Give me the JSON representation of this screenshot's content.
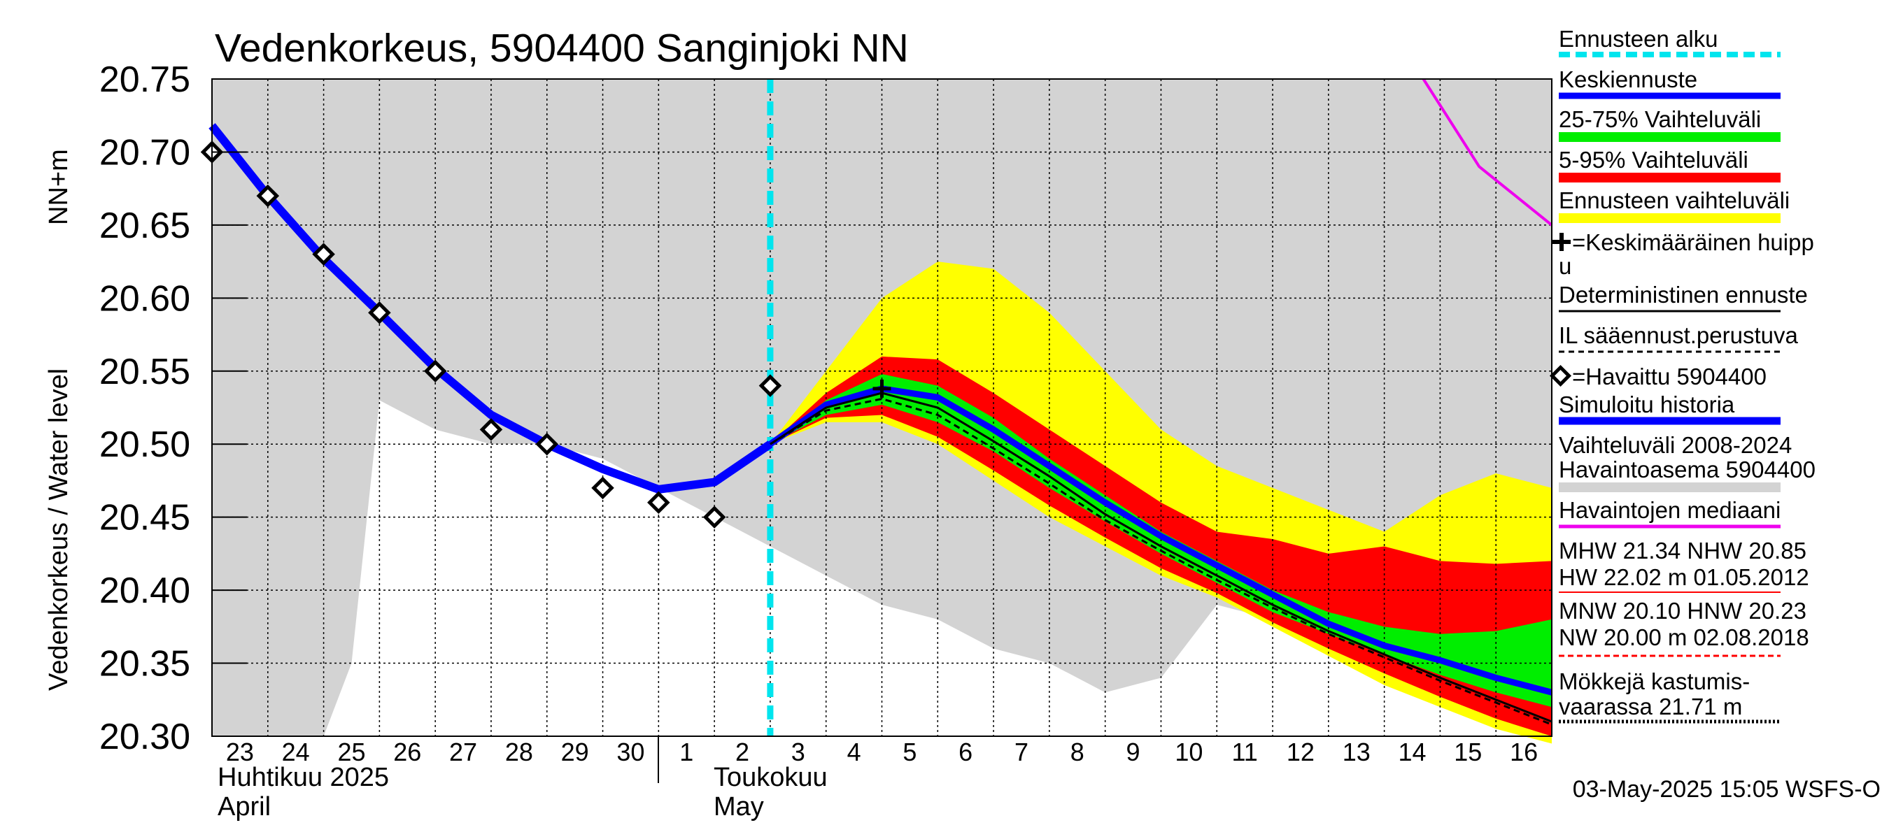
{
  "chart_data": {
    "type": "line",
    "title": "Vedenkorkeus, 5904400 Sanginjoki NN",
    "ylabel": "Vedenkorkeus / Water level",
    "ylabel_unit": "NN+m",
    "ylim": [
      20.3,
      20.75
    ],
    "y_ticks": [
      "20.30",
      "20.35",
      "20.40",
      "20.45",
      "20.50",
      "20.55",
      "20.60",
      "20.65",
      "20.70",
      "20.75"
    ],
    "x_range": [
      0,
      24
    ],
    "x_tick_labels": [
      "23",
      "24",
      "25",
      "26",
      "27",
      "28",
      "29",
      "30",
      "1",
      "2",
      "3",
      "4",
      "5",
      "6",
      "7",
      "8",
      "9",
      "10",
      "11",
      "12",
      "13",
      "14",
      "15",
      "16"
    ],
    "month_labels": {
      "april_fi": "Huhtikuu  2025",
      "april_en": "April",
      "may_fi": "Toukokuu",
      "may_en": "May"
    },
    "forecast_start_x": 10,
    "history_band": {
      "x": [
        0,
        1.5,
        2,
        2.5,
        3,
        4,
        5,
        6,
        7,
        8,
        9,
        10,
        11,
        12,
        13,
        14,
        15,
        16,
        17,
        18,
        19,
        20,
        21,
        22,
        23,
        24
      ],
      "lower": [
        20.3,
        20.3,
        20.3,
        20.35,
        20.53,
        20.51,
        20.5,
        20.5,
        20.49,
        20.47,
        20.45,
        20.43,
        20.41,
        20.39,
        20.38,
        20.36,
        20.35,
        20.33,
        20.34,
        20.39,
        20.38,
        20.36,
        20.35,
        20.33,
        20.33,
        20.38
      ],
      "upper": [
        20.75,
        20.75,
        20.75,
        20.75,
        20.75,
        20.75,
        20.75,
        20.75,
        20.75,
        20.75,
        20.75,
        20.75,
        20.75,
        20.75,
        20.75,
        20.75,
        20.75,
        20.75,
        20.75,
        20.75,
        20.75,
        20.75,
        20.75,
        20.75,
        20.75,
        20.75
      ]
    },
    "forecast_x": [
      10,
      11,
      12,
      13,
      14,
      15,
      16,
      17,
      18,
      19,
      20,
      21,
      22,
      23,
      24
    ],
    "forecast_range": {
      "upper": [
        20.5,
        20.55,
        20.6,
        20.625,
        20.62,
        20.59,
        20.55,
        20.51,
        20.485,
        20.47,
        20.455,
        20.44,
        20.465,
        20.48,
        20.47
      ],
      "lower": [
        20.5,
        20.515,
        20.515,
        20.5,
        20.475,
        20.45,
        20.43,
        20.41,
        20.395,
        20.375,
        20.355,
        20.335,
        20.32,
        20.305,
        20.295
      ]
    },
    "band_5_95": {
      "upper": [
        20.5,
        20.535,
        20.56,
        20.558,
        20.535,
        20.51,
        20.485,
        20.46,
        20.44,
        20.435,
        20.425,
        20.43,
        20.42,
        20.418,
        20.42
      ],
      "lower": [
        20.5,
        20.518,
        20.52,
        20.505,
        20.482,
        20.458,
        20.436,
        20.415,
        20.398,
        20.378,
        20.36,
        20.343,
        20.327,
        20.312,
        20.3
      ]
    },
    "band_25_75": {
      "upper": [
        20.5,
        20.53,
        20.548,
        20.54,
        20.518,
        20.49,
        20.465,
        20.44,
        20.42,
        20.4,
        20.385,
        20.375,
        20.37,
        20.372,
        20.38
      ],
      "lower": [
        20.5,
        20.52,
        20.527,
        20.515,
        20.495,
        20.47,
        20.447,
        20.425,
        20.405,
        20.385,
        20.37,
        20.356,
        20.342,
        20.33,
        20.32
      ]
    },
    "series": [
      {
        "name": "Simuloitu historia",
        "x": [
          0,
          1,
          2,
          3,
          4,
          5,
          6,
          7,
          8,
          9,
          10
        ],
        "values": [
          20.718,
          20.67,
          20.627,
          20.59,
          20.552,
          20.52,
          20.5,
          20.483,
          20.469,
          20.474,
          20.5
        ]
      },
      {
        "name": "Keskiennuste",
        "x": [
          10,
          11,
          12,
          13,
          14,
          15,
          16,
          17,
          18,
          19,
          20,
          21,
          22,
          23,
          24
        ],
        "values": [
          20.5,
          20.527,
          20.538,
          20.532,
          20.51,
          20.485,
          20.46,
          20.437,
          20.417,
          20.397,
          20.377,
          20.362,
          20.352,
          20.34,
          20.33
        ]
      },
      {
        "name": "Deterministinen ennuste",
        "x": [
          10,
          11,
          12,
          13,
          14,
          15,
          16,
          17,
          18,
          19,
          20,
          21,
          22,
          23,
          24
        ],
        "values": [
          20.5,
          20.525,
          20.535,
          20.525,
          20.502,
          20.478,
          20.452,
          20.43,
          20.41,
          20.39,
          20.372,
          20.356,
          20.34,
          20.325,
          20.31
        ]
      },
      {
        "name": "IL sääennust.perustuva",
        "x": [
          10,
          11,
          12,
          13,
          14,
          15,
          16,
          17,
          18,
          19,
          20,
          21,
          22,
          23,
          24
        ],
        "values": [
          20.5,
          20.523,
          20.531,
          20.52,
          20.497,
          20.473,
          20.448,
          20.427,
          20.407,
          20.388,
          20.37,
          20.354,
          20.338,
          20.323,
          20.308
        ]
      },
      {
        "name": "Havaintojen mediaani",
        "x": [
          21.7,
          22.7,
          24
        ],
        "values": [
          20.75,
          20.69,
          20.65
        ]
      }
    ],
    "observed": {
      "name": "Havaittu 5904400",
      "x": [
        0,
        1,
        2,
        3,
        4,
        5,
        6,
        7,
        8,
        9,
        10
      ],
      "values": [
        20.7,
        20.67,
        20.63,
        20.59,
        20.55,
        20.51,
        20.5,
        20.47,
        20.46,
        20.45,
        20.54
      ]
    },
    "mean_peak": {
      "x": 12,
      "value": 20.538
    },
    "legend": [
      {
        "id": "forecast-start",
        "label": "Ennusteen alku",
        "color": "#00e5ee"
      },
      {
        "id": "mean-forecast",
        "label": "Keskiennuste",
        "color": "#0000ff"
      },
      {
        "id": "band-25-75",
        "label": "25-75% Vaihteluväli",
        "color": "#00ee00"
      },
      {
        "id": "band-5-95",
        "label": "5-95% Vaihteluväli",
        "color": "#ff0000"
      },
      {
        "id": "forecast-range",
        "label": "Ennusteen vaihteluväli",
        "color": "#ffff00"
      },
      {
        "id": "mean-peak",
        "label_1": "=Keskimääräinen huipp",
        "label_2": "u",
        "color": "#000000"
      },
      {
        "id": "deterministic",
        "label": "Deterministinen ennuste",
        "color": "#000000"
      },
      {
        "id": "il-weather",
        "label": "IL sääennust.perustuva",
        "color": "#000000"
      },
      {
        "id": "observed",
        "label": "=Havaittu 5904400",
        "color": "#000000"
      },
      {
        "id": "simulated-history",
        "label": "Simuloitu historia",
        "color": "#0000ff"
      },
      {
        "id": "history-range",
        "label_1": "Vaihteluväli 2008-2024",
        "label_2": " Havaintoasema 5904400",
        "color": "#d3d3d3"
      },
      {
        "id": "median",
        "label": "Havaintojen mediaani",
        "color": "#ee00ee"
      },
      {
        "id": "mhw",
        "label_1": "MHW  21.34 NHW  20.85",
        "label_2": "HW  22.02 m 01.05.2012",
        "color": "#ff0000"
      },
      {
        "id": "mnw",
        "label_1": "MNW  20.10 HNW  20.23",
        "label_2": "NW  20.00 m 02.08.2018",
        "color": "#ff0000"
      },
      {
        "id": "cabins",
        "label_1": "Mökkejä kastumis-",
        "label_2": "  vaarassa 21.71 m",
        "color": "#000000"
      }
    ],
    "footer": "03-May-2025 15:05 WSFS-O"
  }
}
